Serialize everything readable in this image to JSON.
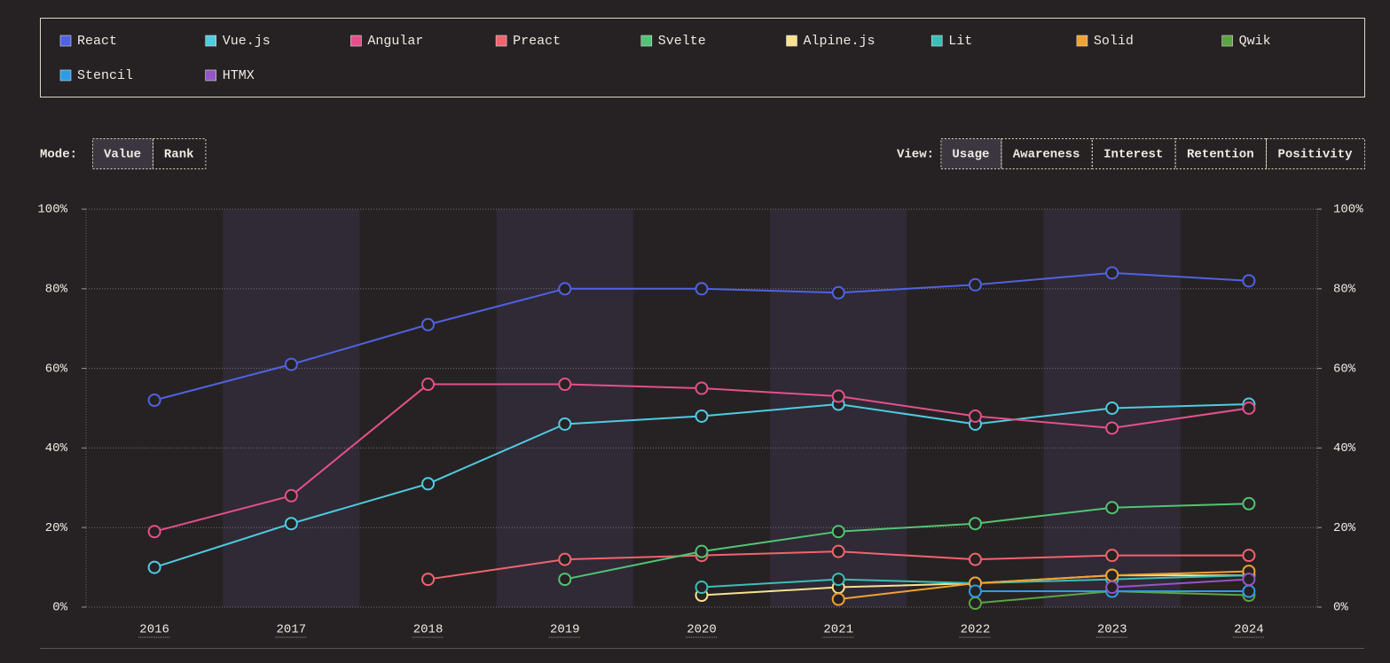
{
  "controls": {
    "mode": {
      "label": "Mode:",
      "options": [
        "Value",
        "Rank"
      ],
      "selected": "Value"
    },
    "view": {
      "label": "View:",
      "options": [
        "Usage",
        "Awareness",
        "Interest",
        "Retention",
        "Positivity"
      ],
      "selected": "Usage"
    }
  },
  "chart_data": {
    "type": "line",
    "categories": [
      "2016",
      "2017",
      "2018",
      "2019",
      "2020",
      "2021",
      "2022",
      "2023",
      "2024"
    ],
    "ylim": [
      0,
      100
    ],
    "yticks": [
      {
        "value": 0,
        "label": "0%"
      },
      {
        "value": 20,
        "label": "20%"
      },
      {
        "value": 40,
        "label": "40%"
      },
      {
        "value": 60,
        "label": "60%"
      },
      {
        "value": 80,
        "label": "80%"
      },
      {
        "value": 100,
        "label": "100%"
      }
    ],
    "grid": true,
    "series": [
      {
        "name": "React",
        "color": "#5062e2",
        "values": [
          52,
          61,
          71,
          80,
          80,
          79,
          81,
          84,
          82
        ]
      },
      {
        "name": "Vue.js",
        "color": "#4fcbe2",
        "values": [
          10,
          21,
          31,
          46,
          48,
          51,
          46,
          50,
          51
        ]
      },
      {
        "name": "Angular",
        "color": "#e4508a",
        "values": [
          19,
          28,
          56,
          56,
          55,
          53,
          48,
          45,
          50
        ]
      },
      {
        "name": "Preact",
        "color": "#f0646e",
        "values": [
          null,
          null,
          7,
          12,
          13,
          14,
          12,
          13,
          13
        ]
      },
      {
        "name": "Svelte",
        "color": "#52c475",
        "values": [
          null,
          null,
          null,
          7,
          14,
          19,
          21,
          25,
          26
        ]
      },
      {
        "name": "Alpine.js",
        "color": "#f8e290",
        "values": [
          null,
          null,
          null,
          null,
          3,
          5,
          6,
          8,
          8
        ]
      },
      {
        "name": "Lit",
        "color": "#3cbeb6",
        "values": [
          null,
          null,
          null,
          null,
          5,
          7,
          6,
          7,
          8
        ]
      },
      {
        "name": "Solid",
        "color": "#f0a232",
        "values": [
          null,
          null,
          null,
          null,
          null,
          2,
          6,
          8,
          9
        ]
      },
      {
        "name": "Qwik",
        "color": "#5ca444",
        "values": [
          null,
          null,
          null,
          null,
          null,
          null,
          1,
          4,
          3
        ]
      },
      {
        "name": "Stencil",
        "color": "#2c9ce8",
        "values": [
          null,
          null,
          null,
          null,
          null,
          null,
          4,
          4,
          4
        ]
      },
      {
        "name": "HTMX",
        "color": "#9456c4",
        "values": [
          null,
          null,
          null,
          null,
          null,
          null,
          null,
          5,
          7
        ]
      }
    ]
  }
}
